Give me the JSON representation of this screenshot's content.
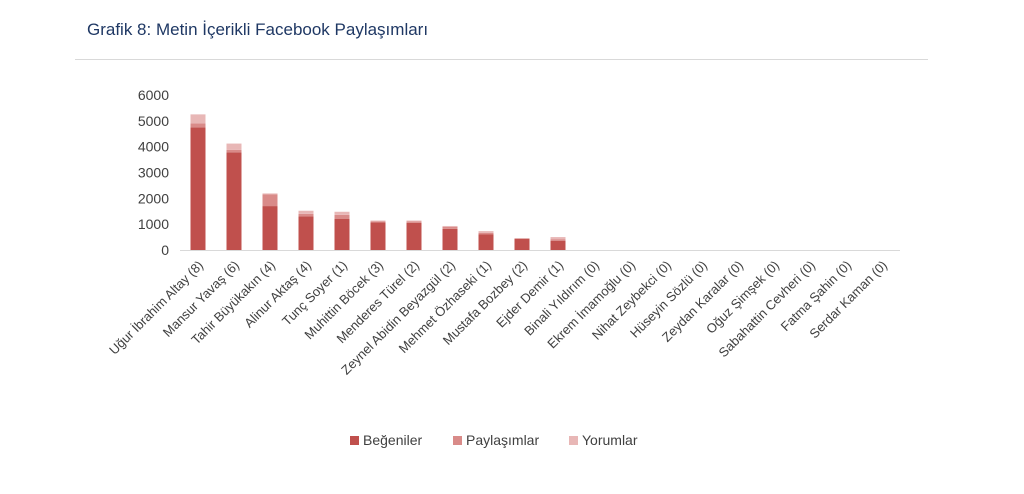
{
  "caption": "Grafik 8: Metin İçerikli Facebook Paylaşımları",
  "chart_data": {
    "type": "bar",
    "stacked": true,
    "title": "",
    "xlabel": "",
    "ylabel": "",
    "ylim": [
      0,
      6000
    ],
    "yticks": [
      "0",
      "1000",
      "2000",
      "3000",
      "4000",
      "5000",
      "6000"
    ],
    "grid": false,
    "legend_position": "bottom",
    "categories": [
      "Uğur İbrahim Altay (8)",
      "Mansur Yavaş (6)",
      "Tahir Büyükakın (4)",
      "Alinur Aktaş (4)",
      "Tunç Soyer (1)",
      "Muhittin Böcek (3)",
      "Menderes Türel (2)",
      "Zeynel Abidin Beyazgül (2)",
      "Mehmet Özhaseki (1)",
      "Mustafa Bozbey (2)",
      "Ejder Demir (1)",
      "Binali Yıldırım (0)",
      "Ekrem İmamoğlu (0)",
      "Nihat Zeybekci (0)",
      "Hüseyin Sözlü (0)",
      "Zeydan Karalar (0)",
      "Oğuz Şimşek (0)",
      "Sabahattin Cevheri (0)",
      "Fatma Şahin (0)",
      "Serdar Kaman (0)"
    ],
    "series": [
      {
        "name": "Beğeniler",
        "color": "#c0504d",
        "values": [
          4750,
          3780,
          1700,
          1300,
          1200,
          1070,
          1050,
          820,
          600,
          440,
          360,
          0,
          0,
          0,
          0,
          0,
          0,
          0,
          0,
          0
        ]
      },
      {
        "name": "Paylaşımlar",
        "color": "#d98b89",
        "values": [
          150,
          100,
          450,
          100,
          160,
          40,
          60,
          80,
          60,
          10,
          60,
          0,
          0,
          0,
          0,
          0,
          0,
          0,
          0,
          0
        ]
      },
      {
        "name": "Yorumlar",
        "color": "#e8b7b6",
        "values": [
          350,
          240,
          40,
          120,
          120,
          30,
          30,
          30,
          70,
          0,
          80,
          0,
          0,
          0,
          0,
          0,
          0,
          0,
          0,
          0
        ]
      }
    ]
  }
}
